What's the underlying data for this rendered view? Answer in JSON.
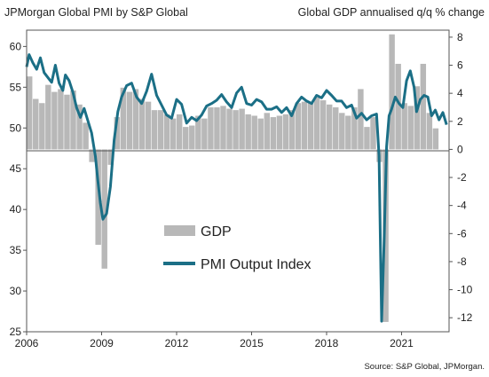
{
  "chart_data": {
    "type": "bar+line",
    "title_left": "JPMorgan Global PMI by S&P Global",
    "title_right": "Global GDP annualised q/q % change",
    "source": "Source: S&P Global, JPMorgan.",
    "left_axis": {
      "range": [
        25,
        62
      ],
      "ticks": [
        25,
        30,
        35,
        40,
        45,
        50,
        55,
        60
      ]
    },
    "right_axis": {
      "range": [
        -13,
        8.5
      ],
      "ticks": [
        -12,
        -10,
        -8,
        -6,
        -4,
        -2,
        0,
        2,
        4,
        6,
        8
      ]
    },
    "x_axis": {
      "range": [
        2006.0,
        2022.9
      ],
      "ticks": [
        2006,
        2009,
        2012,
        2015,
        2018,
        2021
      ]
    },
    "legend": {
      "placement": "center-left"
    },
    "grid": false,
    "colors": {
      "line": "#1b6f86",
      "bars": "#b8b8b8"
    },
    "series": [
      {
        "name": "GDP",
        "kind": "bar",
        "axis": "right",
        "x": [
          2006.0,
          2006.25,
          2006.5,
          2006.75,
          2007.0,
          2007.25,
          2007.5,
          2007.75,
          2008.0,
          2008.25,
          2008.5,
          2008.75,
          2009.0,
          2009.25,
          2009.5,
          2009.75,
          2010.0,
          2010.25,
          2010.5,
          2010.75,
          2011.0,
          2011.25,
          2011.5,
          2011.75,
          2012.0,
          2012.25,
          2012.5,
          2012.75,
          2013.0,
          2013.25,
          2013.5,
          2013.75,
          2014.0,
          2014.25,
          2014.5,
          2014.75,
          2015.0,
          2015.25,
          2015.5,
          2015.75,
          2016.0,
          2016.25,
          2016.5,
          2016.75,
          2017.0,
          2017.25,
          2017.5,
          2017.75,
          2018.0,
          2018.25,
          2018.5,
          2018.75,
          2019.0,
          2019.25,
          2019.5,
          2019.75,
          2020.0,
          2020.25,
          2020.5,
          2020.75,
          2021.0,
          2021.25,
          2021.5,
          2021.75,
          2022.0,
          2022.25
        ],
        "values": [
          5.2,
          3.6,
          3.3,
          4.6,
          4.1,
          4.3,
          3.9,
          4.2,
          3.2,
          1.9,
          -0.9,
          -6.8,
          -8.5,
          -1.1,
          2.3,
          4.4,
          4.1,
          4.3,
          3.6,
          3.4,
          2.8,
          2.8,
          2.5,
          2.2,
          2.5,
          1.6,
          1.7,
          2.4,
          2.2,
          3.0,
          3.0,
          3.1,
          2.9,
          2.8,
          2.9,
          2.5,
          2.4,
          2.2,
          2.6,
          2.3,
          2.4,
          2.5,
          2.8,
          3.3,
          3.4,
          3.4,
          3.7,
          3.5,
          3.2,
          3.0,
          2.6,
          2.4,
          3.0,
          4.3,
          1.6,
          2.3,
          -0.9,
          -12.3,
          8.2,
          6.1,
          3.3,
          3.1,
          4.5,
          6.1,
          2.6,
          1.5
        ]
      },
      {
        "name": "PMI Output Index",
        "kind": "line",
        "axis": "left",
        "x": [
          2006.0,
          2006.1,
          2006.25,
          2006.4,
          2006.55,
          2006.7,
          2006.85,
          2007.0,
          2007.15,
          2007.3,
          2007.45,
          2007.55,
          2007.7,
          2007.85,
          2008.0,
          2008.15,
          2008.3,
          2008.45,
          2008.6,
          2008.75,
          2008.85,
          2008.95,
          2009.05,
          2009.2,
          2009.35,
          2009.5,
          2009.65,
          2009.8,
          2010.0,
          2010.2,
          2010.4,
          2010.6,
          2010.8,
          2011.0,
          2011.2,
          2011.4,
          2011.6,
          2011.8,
          2012.0,
          2012.2,
          2012.4,
          2012.6,
          2012.8,
          2013.0,
          2013.2,
          2013.4,
          2013.6,
          2013.8,
          2014.0,
          2014.2,
          2014.4,
          2014.6,
          2014.8,
          2015.0,
          2015.2,
          2015.4,
          2015.6,
          2015.8,
          2016.0,
          2016.2,
          2016.4,
          2016.6,
          2016.8,
          2017.0,
          2017.2,
          2017.4,
          2017.6,
          2017.8,
          2018.0,
          2018.2,
          2018.4,
          2018.6,
          2018.8,
          2019.0,
          2019.2,
          2019.4,
          2019.6,
          2019.8,
          2020.0,
          2020.1,
          2020.2,
          2020.3,
          2020.4,
          2020.5,
          2020.6,
          2020.75,
          2020.9,
          2021.05,
          2021.2,
          2021.35,
          2021.5,
          2021.6,
          2021.75,
          2021.9,
          2022.05,
          2022.2,
          2022.35,
          2022.5,
          2022.65,
          2022.8
        ],
        "values": [
          57.5,
          59.0,
          58.0,
          57.2,
          58.6,
          56.8,
          56.2,
          55.6,
          57.7,
          55.5,
          54.6,
          56.5,
          55.8,
          54.4,
          52.5,
          51.3,
          52.4,
          50.9,
          49.4,
          46.5,
          43.5,
          40.8,
          38.8,
          39.5,
          42.8,
          48.5,
          52.0,
          53.8,
          55.2,
          55.5,
          53.8,
          53.0,
          54.5,
          56.6,
          54.0,
          52.8,
          51.6,
          51.2,
          53.5,
          52.9,
          50.6,
          51.3,
          50.9,
          51.6,
          52.7,
          53.0,
          53.4,
          54.1,
          53.2,
          52.5,
          54.3,
          55.0,
          53.0,
          52.8,
          53.5,
          53.2,
          52.3,
          52.3,
          52.6,
          51.9,
          52.5,
          51.5,
          53.0,
          53.8,
          53.3,
          53.0,
          54.0,
          53.7,
          54.6,
          54.0,
          53.3,
          53.3,
          52.5,
          52.8,
          51.2,
          51.8,
          51.0,
          51.5,
          51.7,
          46.6,
          26.3,
          36.0,
          47.7,
          51.5,
          52.3,
          53.8,
          53.0,
          52.5,
          55.8,
          57.0,
          55.0,
          52.0,
          53.5,
          54.0,
          53.8,
          51.5,
          52.2,
          51.0,
          51.9,
          50.4
        ]
      }
    ],
    "legend_labels": [
      "GDP",
      "PMI Output Index"
    ]
  }
}
